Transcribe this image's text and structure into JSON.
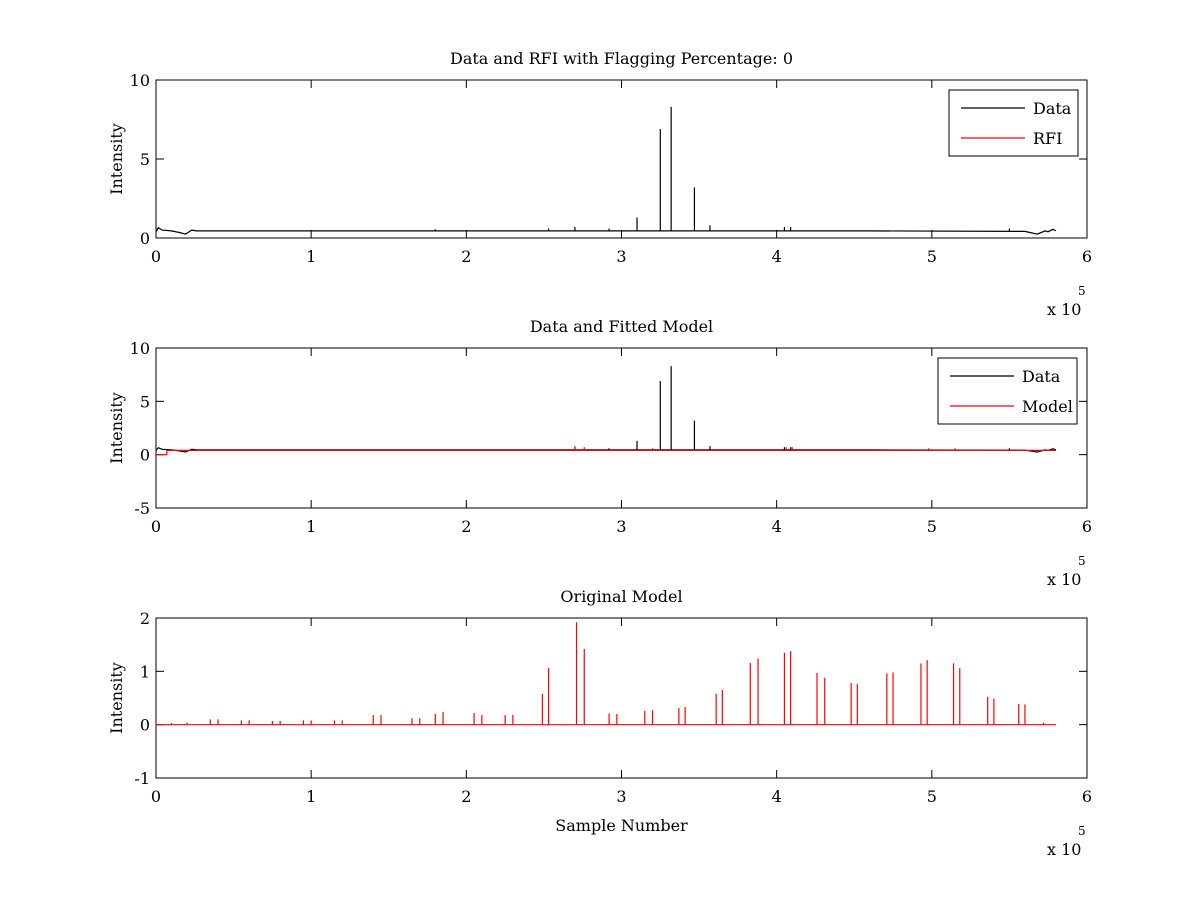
{
  "chart_data": [
    {
      "type": "line",
      "title": "Data and RFI with Flagging Percentage: 0",
      "xlabel": "",
      "ylabel": "Intensity",
      "xlim": [
        0,
        600000
      ],
      "ylim": [
        0,
        10
      ],
      "xticks": [
        0,
        100000,
        200000,
        300000,
        400000,
        500000,
        600000
      ],
      "xtick_labels": [
        "0",
        "1",
        "2",
        "3",
        "4",
        "5",
        "6"
      ],
      "yticks": [
        0,
        5,
        10
      ],
      "ytick_labels": [
        "0",
        "5",
        "10"
      ],
      "x_multiplier_text": "x 10",
      "x_multiplier_exp": "5",
      "grid": false,
      "legend_position": "top-right",
      "series": [
        {
          "name": "Data",
          "color": "#000000",
          "baseline": [
            [
              0,
              0.4
            ],
            [
              1500,
              0.65
            ],
            [
              4000,
              0.5
            ],
            [
              10000,
              0.45
            ],
            [
              15000,
              0.35
            ],
            [
              19000,
              0.25
            ],
            [
              23000,
              0.5
            ],
            [
              26000,
              0.45
            ],
            [
              100000,
              0.45
            ],
            [
              300000,
              0.45
            ],
            [
              460000,
              0.45
            ],
            [
              560000,
              0.42
            ],
            [
              568000,
              0.25
            ],
            [
              573000,
              0.45
            ],
            [
              575000,
              0.4
            ],
            [
              578000,
              0.55
            ],
            [
              580000,
              0.45
            ]
          ],
          "spikes": [
            [
              310000,
              1.3
            ],
            [
              325000,
              6.9
            ],
            [
              332000,
              8.3
            ],
            [
              347000,
              3.2
            ],
            [
              357000,
              0.8
            ],
            [
              405000,
              0.7
            ],
            [
              409000,
              0.7
            ],
            [
              253000,
              0.6
            ],
            [
              270000,
              0.7
            ],
            [
              292000,
              0.6
            ],
            [
              550000,
              0.6
            ],
            [
              180000,
              0.55
            ]
          ]
        },
        {
          "name": "RFI",
          "color": "#ff0000",
          "points": []
        }
      ]
    },
    {
      "type": "line",
      "title": "Data and Fitted Model",
      "xlabel": "",
      "ylabel": "Intensity",
      "xlim": [
        0,
        600000
      ],
      "ylim": [
        -5,
        10
      ],
      "xticks": [
        0,
        100000,
        200000,
        300000,
        400000,
        500000,
        600000
      ],
      "xtick_labels": [
        "0",
        "1",
        "2",
        "3",
        "4",
        "5",
        "6"
      ],
      "yticks": [
        -5,
        0,
        5,
        10
      ],
      "ytick_labels": [
        "-5",
        "0",
        "5",
        "10"
      ],
      "x_multiplier_text": "x 10",
      "x_multiplier_exp": "5",
      "grid": false,
      "legend_position": "top-right",
      "series": [
        {
          "name": "Data",
          "color": "#000000",
          "baseline": [
            [
              0,
              0.4
            ],
            [
              1500,
              0.65
            ],
            [
              4000,
              0.5
            ],
            [
              10000,
              0.45
            ],
            [
              15000,
              0.35
            ],
            [
              19000,
              0.25
            ],
            [
              23000,
              0.5
            ],
            [
              26000,
              0.45
            ],
            [
              100000,
              0.45
            ],
            [
              300000,
              0.45
            ],
            [
              460000,
              0.45
            ],
            [
              560000,
              0.42
            ],
            [
              568000,
              0.25
            ],
            [
              573000,
              0.45
            ],
            [
              575000,
              0.4
            ],
            [
              578000,
              0.55
            ],
            [
              580000,
              0.45
            ]
          ],
          "spikes": [
            [
              310000,
              1.3
            ],
            [
              325000,
              6.9
            ],
            [
              332000,
              8.3
            ],
            [
              347000,
              3.2
            ],
            [
              357000,
              0.8
            ],
            [
              405000,
              0.7
            ],
            [
              409000,
              0.7
            ],
            [
              270000,
              0.7
            ],
            [
              292000,
              0.6
            ],
            [
              550000,
              0.6
            ]
          ]
        },
        {
          "name": "Model",
          "color": "#ff0000",
          "baseline": [
            [
              0,
              0.0
            ],
            [
              7000,
              0.0
            ],
            [
              7000,
              0.4
            ],
            [
              580000,
              0.4
            ]
          ],
          "spikes": [
            [
              270000,
              0.8
            ],
            [
              276000,
              0.7
            ],
            [
              320000,
              0.6
            ],
            [
              406000,
              0.7
            ],
            [
              410000,
              0.7
            ],
            [
              498000,
              0.6
            ],
            [
              515000,
              0.6
            ]
          ]
        }
      ]
    },
    {
      "type": "line",
      "title": "Original Model",
      "xlabel": "Sample Number",
      "ylabel": "Intensity",
      "xlim": [
        0,
        600000
      ],
      "ylim": [
        -1,
        2
      ],
      "xticks": [
        0,
        100000,
        200000,
        300000,
        400000,
        500000,
        600000
      ],
      "xtick_labels": [
        "0",
        "1",
        "2",
        "3",
        "4",
        "5",
        "6"
      ],
      "yticks": [
        -1,
        0,
        1,
        2
      ],
      "ytick_labels": [
        "-1",
        "0",
        "1",
        "2"
      ],
      "x_multiplier_text": "x 10",
      "x_multiplier_exp": "5",
      "grid": false,
      "legend_position": "none",
      "series": [
        {
          "name": "",
          "color": "#ff0000",
          "baseline": [
            [
              0,
              0.0
            ],
            [
              580000,
              0.0
            ]
          ],
          "spikes": [
            [
              10000,
              0.03
            ],
            [
              20000,
              0.04
            ],
            [
              35000,
              0.1
            ],
            [
              40000,
              0.1
            ],
            [
              55000,
              0.08
            ],
            [
              60000,
              0.08
            ],
            [
              75000,
              0.07
            ],
            [
              80000,
              0.07
            ],
            [
              95000,
              0.08
            ],
            [
              100000,
              0.08
            ],
            [
              115000,
              0.08
            ],
            [
              120000,
              0.08
            ],
            [
              140000,
              0.18
            ],
            [
              145000,
              0.18
            ],
            [
              165000,
              0.12
            ],
            [
              170000,
              0.12
            ],
            [
              180000,
              0.2
            ],
            [
              185000,
              0.24
            ],
            [
              205000,
              0.22
            ],
            [
              210000,
              0.18
            ],
            [
              225000,
              0.18
            ],
            [
              230000,
              0.18
            ],
            [
              249000,
              0.58
            ],
            [
              253000,
              1.06
            ],
            [
              271000,
              1.92
            ],
            [
              276000,
              1.42
            ],
            [
              292000,
              0.21
            ],
            [
              297000,
              0.2
            ],
            [
              315000,
              0.26
            ],
            [
              320000,
              0.27
            ],
            [
              337000,
              0.31
            ],
            [
              341000,
              0.33
            ],
            [
              361000,
              0.58
            ],
            [
              365000,
              0.65
            ],
            [
              383000,
              1.16
            ],
            [
              388000,
              1.24
            ],
            [
              405000,
              1.35
            ],
            [
              409000,
              1.38
            ],
            [
              426000,
              0.97
            ],
            [
              431000,
              0.88
            ],
            [
              448000,
              0.78
            ],
            [
              452000,
              0.76
            ],
            [
              471000,
              0.96
            ],
            [
              475000,
              0.98
            ],
            [
              493000,
              1.15
            ],
            [
              497000,
              1.21
            ],
            [
              514000,
              1.15
            ],
            [
              518000,
              1.06
            ],
            [
              536000,
              0.52
            ],
            [
              540000,
              0.49
            ],
            [
              556000,
              0.39
            ],
            [
              560000,
              0.38
            ],
            [
              572000,
              0.04
            ]
          ]
        }
      ]
    }
  ]
}
